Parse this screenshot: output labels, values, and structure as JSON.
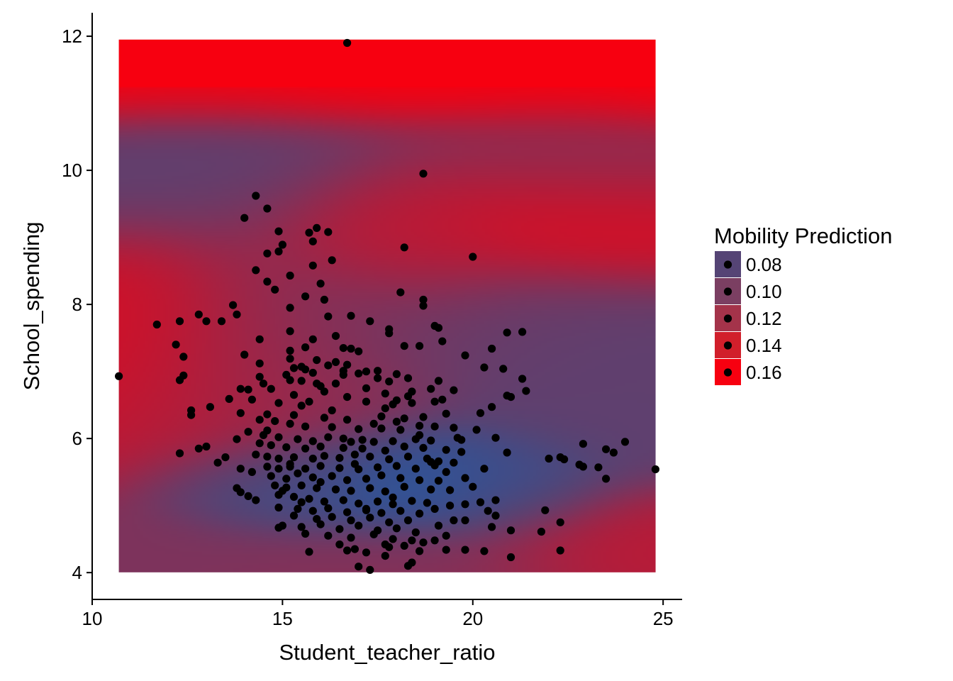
{
  "chart_data": {
    "type": "scatter",
    "title": "",
    "xlabel": "Student_teacher_ratio",
    "ylabel": "School_spending",
    "xlim": [
      10,
      25.5
    ],
    "ylim": [
      3.6,
      12.35
    ],
    "x_ticks": [
      10,
      15,
      20,
      25
    ],
    "y_ticks": [
      4,
      6,
      8,
      10,
      12
    ],
    "grid": false,
    "legend_position": "right",
    "legend": {
      "title": "Mobility Prediction",
      "entries": [
        {
          "label": "0.08",
          "color": "#554475"
        },
        {
          "label": "0.10",
          "color": "#7b3f62"
        },
        {
          "label": "0.12",
          "color": "#a4334a"
        },
        {
          "label": "0.14",
          "color": "#d11f2b"
        },
        {
          "label": "0.16",
          "color": "#f70010"
        }
      ]
    },
    "prediction_surface": {
      "x_range": [
        10.7,
        24.8
      ],
      "y_range": [
        4.0,
        11.95
      ],
      "color_low": "#1d5aa7",
      "color_mid": "#554475",
      "color_high": "#f70010",
      "regions": [
        {
          "x": 10.7,
          "y": 11.5,
          "value": 0.17,
          "sx": 60,
          "sy": 0.45
        },
        {
          "x": 17.0,
          "y": 11.6,
          "value": 0.17,
          "sx": 60,
          "sy": 0.4
        },
        {
          "x": 24.8,
          "y": 11.5,
          "value": 0.17,
          "sx": 60,
          "sy": 0.4
        },
        {
          "x": 12.5,
          "y": 10.2,
          "value": 0.085,
          "sx": 4.0,
          "sy": 0.8
        },
        {
          "x": 22.5,
          "y": 10.3,
          "value": 0.11,
          "sx": 3.0,
          "sy": 0.7
        },
        {
          "x": 21.5,
          "y": 9.2,
          "value": 0.155,
          "sx": 3.5,
          "sy": 0.55
        },
        {
          "x": 18.5,
          "y": 9.0,
          "value": 0.13,
          "sx": 1.5,
          "sy": 0.6
        },
        {
          "x": 10.7,
          "y": 7.6,
          "value": 0.15,
          "sx": 1.5,
          "sy": 0.8
        },
        {
          "x": 12.5,
          "y": 7.0,
          "value": 0.13,
          "sx": 1.8,
          "sy": 1.0
        },
        {
          "x": 15.5,
          "y": 7.2,
          "value": 0.11,
          "sx": 2.0,
          "sy": 1.0
        },
        {
          "x": 19.5,
          "y": 7.8,
          "value": 0.09,
          "sx": 2.5,
          "sy": 0.6
        },
        {
          "x": 23.5,
          "y": 6.8,
          "value": 0.085,
          "sx": 2.5,
          "sy": 0.9
        },
        {
          "x": 18.5,
          "y": 5.3,
          "value": 0.055,
          "sx": 2.3,
          "sy": 0.5
        },
        {
          "x": 14.5,
          "y": 5.2,
          "value": 0.07,
          "sx": 1.6,
          "sy": 0.4
        },
        {
          "x": 21.0,
          "y": 5.2,
          "value": 0.07,
          "sx": 1.5,
          "sy": 0.4
        },
        {
          "x": 23.5,
          "y": 4.5,
          "value": 0.135,
          "sx": 2.0,
          "sy": 0.45
        },
        {
          "x": 12.0,
          "y": 4.2,
          "value": 0.1,
          "sx": 2.0,
          "sy": 0.4
        },
        {
          "x": 17.5,
          "y": 4.1,
          "value": 0.105,
          "sx": 3.0,
          "sy": 0.4
        }
      ]
    },
    "points": [
      [
        16.7,
        11.9
      ],
      [
        18.7,
        9.95
      ],
      [
        14.3,
        9.62
      ],
      [
        14.6,
        9.43
      ],
      [
        14.0,
        9.29
      ],
      [
        15.9,
        9.14
      ],
      [
        16.2,
        9.08
      ],
      [
        15.7,
        9.07
      ],
      [
        14.9,
        9.09
      ],
      [
        15.0,
        8.89
      ],
      [
        14.9,
        8.79
      ],
      [
        14.6,
        8.76
      ],
      [
        15.8,
        8.94
      ],
      [
        18.2,
        8.85
      ],
      [
        20.0,
        8.71
      ],
      [
        16.3,
        8.66
      ],
      [
        15.8,
        8.58
      ],
      [
        14.3,
        8.51
      ],
      [
        15.2,
        8.43
      ],
      [
        14.6,
        8.34
      ],
      [
        16.0,
        8.31
      ],
      [
        14.8,
        8.22
      ],
      [
        18.1,
        8.18
      ],
      [
        15.6,
        8.12
      ],
      [
        16.1,
        8.07
      ],
      [
        13.7,
        7.99
      ],
      [
        18.7,
        8.07
      ],
      [
        15.2,
        7.95
      ],
      [
        18.7,
        7.98
      ],
      [
        13.8,
        7.85
      ],
      [
        12.8,
        7.85
      ],
      [
        16.2,
        7.82
      ],
      [
        16.8,
        7.83
      ],
      [
        12.3,
        7.75
      ],
      [
        13.0,
        7.75
      ],
      [
        13.4,
        7.75
      ],
      [
        11.7,
        7.7
      ],
      [
        17.3,
        7.75
      ],
      [
        19.0,
        7.68
      ],
      [
        19.1,
        7.65
      ],
      [
        15.2,
        7.6
      ],
      [
        17.8,
        7.63
      ],
      [
        17.8,
        7.57
      ],
      [
        20.9,
        7.58
      ],
      [
        21.3,
        7.59
      ],
      [
        16.4,
        7.53
      ],
      [
        15.8,
        7.48
      ],
      [
        19.2,
        7.45
      ],
      [
        14.4,
        7.48
      ],
      [
        18.2,
        7.38
      ],
      [
        18.6,
        7.38
      ],
      [
        15.6,
        7.36
      ],
      [
        16.8,
        7.34
      ],
      [
        12.2,
        7.4
      ],
      [
        17.0,
        7.3
      ],
      [
        20.5,
        7.34
      ],
      [
        15.2,
        7.31
      ],
      [
        16.6,
        7.35
      ],
      [
        14.0,
        7.25
      ],
      [
        15.2,
        7.19
      ],
      [
        12.4,
        7.22
      ],
      [
        16.4,
        7.14
      ],
      [
        15.9,
        7.17
      ],
      [
        19.8,
        7.24
      ],
      [
        15.5,
        7.07
      ],
      [
        14.4,
        7.12
      ],
      [
        15.3,
        7.05
      ],
      [
        15.6,
        7.03
      ],
      [
        16.7,
        7.1
      ],
      [
        16.6,
        7.01
      ],
      [
        16.2,
        7.09
      ],
      [
        17.5,
        7.01
      ],
      [
        17.2,
        7.0
      ],
      [
        15.8,
        6.98
      ],
      [
        16.6,
        6.95
      ],
      [
        17.0,
        6.97
      ],
      [
        20.3,
        7.06
      ],
      [
        20.8,
        7.04
      ],
      [
        12.4,
        6.94
      ],
      [
        14.4,
        6.92
      ],
      [
        15.2,
        6.87
      ],
      [
        15.1,
        6.95
      ],
      [
        17.5,
        6.9
      ],
      [
        18.0,
        6.96
      ],
      [
        10.7,
        6.93
      ],
      [
        12.3,
        6.87
      ],
      [
        21.3,
        6.89
      ],
      [
        18.3,
        6.9
      ],
      [
        19.1,
        6.86
      ],
      [
        16.0,
        6.78
      ],
      [
        15.5,
        6.86
      ],
      [
        15.9,
        6.82
      ],
      [
        17.2,
        6.75
      ],
      [
        19.5,
        6.72
      ],
      [
        21.4,
        6.71
      ],
      [
        13.9,
        6.74
      ],
      [
        14.1,
        6.73
      ],
      [
        14.7,
        6.74
      ],
      [
        16.1,
        6.7
      ],
      [
        18.4,
        6.7
      ],
      [
        18.9,
        6.74
      ],
      [
        15.3,
        6.65
      ],
      [
        16.7,
        6.62
      ],
      [
        17.7,
        6.67
      ],
      [
        18.0,
        6.57
      ],
      [
        18.3,
        6.63
      ],
      [
        19.2,
        6.58
      ],
      [
        20.9,
        6.64
      ],
      [
        21.0,
        6.62
      ],
      [
        13.6,
        6.59
      ],
      [
        14.2,
        6.58
      ],
      [
        14.9,
        6.53
      ],
      [
        15.5,
        6.49
      ],
      [
        17.2,
        6.55
      ],
      [
        17.9,
        6.51
      ],
      [
        18.4,
        6.53
      ],
      [
        19.0,
        6.55
      ],
      [
        20.5,
        6.47
      ],
      [
        13.1,
        6.47
      ],
      [
        12.6,
        6.42
      ],
      [
        12.6,
        6.35
      ],
      [
        13.9,
        6.38
      ],
      [
        14.6,
        6.36
      ],
      [
        15.3,
        6.35
      ],
      [
        16.1,
        6.31
      ],
      [
        16.7,
        6.28
      ],
      [
        17.6,
        6.33
      ],
      [
        18.2,
        6.3
      ],
      [
        18.7,
        6.32
      ],
      [
        19.3,
        6.37
      ],
      [
        14.4,
        6.28
      ],
      [
        14.8,
        6.26
      ],
      [
        15.2,
        6.22
      ],
      [
        15.6,
        6.18
      ],
      [
        16.3,
        6.17
      ],
      [
        17.0,
        6.14
      ],
      [
        17.6,
        6.15
      ],
      [
        18.1,
        6.13
      ],
      [
        18.6,
        6.19
      ],
      [
        19.0,
        6.18
      ],
      [
        19.5,
        6.16
      ],
      [
        20.1,
        6.13
      ],
      [
        14.1,
        6.1
      ],
      [
        14.5,
        6.05
      ],
      [
        14.9,
        6.02
      ],
      [
        15.4,
        5.99
      ],
      [
        15.8,
        5.96
      ],
      [
        16.2,
        6.02
      ],
      [
        16.6,
        6.0
      ],
      [
        17.1,
        5.98
      ],
      [
        17.4,
        5.95
      ],
      [
        17.9,
        5.96
      ],
      [
        18.5,
        5.99
      ],
      [
        18.9,
        5.97
      ],
      [
        19.6,
        6.01
      ],
      [
        20.6,
        6.01
      ],
      [
        13.8,
        5.99
      ],
      [
        14.4,
        5.93
      ],
      [
        14.7,
        5.9
      ],
      [
        15.1,
        5.87
      ],
      [
        15.6,
        5.85
      ],
      [
        16.0,
        5.88
      ],
      [
        16.6,
        5.86
      ],
      [
        17.1,
        5.85
      ],
      [
        17.7,
        5.82
      ],
      [
        18.2,
        5.88
      ],
      [
        18.7,
        5.86
      ],
      [
        19.3,
        5.83
      ],
      [
        19.7,
        5.8
      ],
      [
        20.9,
        5.79
      ],
      [
        13.0,
        5.88
      ],
      [
        12.8,
        5.85
      ],
      [
        12.3,
        5.78
      ],
      [
        13.3,
        5.64
      ],
      [
        13.5,
        5.72
      ],
      [
        14.3,
        5.76
      ],
      [
        14.6,
        5.73
      ],
      [
        14.9,
        5.7
      ],
      [
        15.3,
        5.72
      ],
      [
        15.8,
        5.7
      ],
      [
        16.1,
        5.74
      ],
      [
        16.5,
        5.71
      ],
      [
        16.9,
        5.76
      ],
      [
        17.3,
        5.73
      ],
      [
        17.8,
        5.69
      ],
      [
        18.3,
        5.73
      ],
      [
        18.8,
        5.7
      ],
      [
        19.1,
        5.66
      ],
      [
        19.5,
        5.64
      ],
      [
        22.0,
        5.7
      ],
      [
        22.3,
        5.72
      ],
      [
        22.4,
        5.69
      ],
      [
        22.8,
        5.61
      ],
      [
        22.9,
        5.58
      ],
      [
        23.3,
        5.57
      ],
      [
        23.5,
        5.84
      ],
      [
        23.7,
        5.79
      ],
      [
        23.5,
        5.4
      ],
      [
        24.0,
        5.95
      ],
      [
        22.9,
        5.92
      ],
      [
        24.8,
        5.54
      ],
      [
        13.9,
        5.55
      ],
      [
        14.6,
        5.58
      ],
      [
        14.9,
        5.55
      ],
      [
        15.2,
        5.58
      ],
      [
        15.6,
        5.55
      ],
      [
        16.0,
        5.59
      ],
      [
        16.5,
        5.56
      ],
      [
        17.0,
        5.54
      ],
      [
        17.5,
        5.57
      ],
      [
        18.0,
        5.59
      ],
      [
        18.5,
        5.55
      ],
      [
        19.0,
        5.6
      ],
      [
        19.3,
        5.5
      ],
      [
        20.3,
        5.55
      ],
      [
        14.2,
        5.5
      ],
      [
        14.7,
        5.44
      ],
      [
        15.1,
        5.4
      ],
      [
        15.4,
        5.48
      ],
      [
        15.8,
        5.42
      ],
      [
        16.3,
        5.44
      ],
      [
        16.7,
        5.38
      ],
      [
        17.2,
        5.4
      ],
      [
        17.6,
        5.45
      ],
      [
        18.1,
        5.41
      ],
      [
        18.6,
        5.38
      ],
      [
        19.1,
        5.37
      ],
      [
        19.8,
        5.41
      ],
      [
        14.8,
        5.3
      ],
      [
        15.1,
        5.27
      ],
      [
        15.5,
        5.3
      ],
      [
        15.9,
        5.26
      ],
      [
        16.4,
        5.24
      ],
      [
        16.8,
        5.22
      ],
      [
        17.3,
        5.26
      ],
      [
        17.7,
        5.21
      ],
      [
        18.2,
        5.28
      ],
      [
        18.9,
        5.24
      ],
      [
        19.4,
        5.23
      ],
      [
        13.9,
        5.2
      ],
      [
        14.1,
        5.14
      ],
      [
        14.3,
        5.08
      ],
      [
        13.8,
        5.26
      ],
      [
        14.9,
        5.16
      ],
      [
        15.3,
        5.13
      ],
      [
        15.7,
        5.1
      ],
      [
        16.1,
        5.06
      ],
      [
        16.6,
        5.08
      ],
      [
        17.0,
        5.03
      ],
      [
        17.5,
        5.06
      ],
      [
        17.9,
        5.02
      ],
      [
        18.4,
        5.07
      ],
      [
        18.8,
        5.04
      ],
      [
        19.4,
        5.0
      ],
      [
        19.8,
        5.02
      ],
      [
        20.2,
        5.05
      ],
      [
        20.6,
        5.08
      ],
      [
        14.9,
        4.97
      ],
      [
        15.4,
        4.95
      ],
      [
        15.8,
        4.92
      ],
      [
        16.2,
        4.96
      ],
      [
        16.7,
        4.9
      ],
      [
        17.2,
        4.93
      ],
      [
        17.6,
        4.89
      ],
      [
        18.1,
        4.92
      ],
      [
        18.6,
        4.88
      ],
      [
        19.0,
        4.95
      ],
      [
        20.4,
        4.92
      ],
      [
        20.6,
        4.85
      ],
      [
        21.9,
        4.93
      ],
      [
        15.3,
        4.85
      ],
      [
        15.9,
        4.8
      ],
      [
        16.3,
        4.83
      ],
      [
        16.8,
        4.78
      ],
      [
        17.3,
        4.82
      ],
      [
        17.8,
        4.75
      ],
      [
        18.3,
        4.78
      ],
      [
        19.5,
        4.78
      ],
      [
        15.0,
        4.7
      ],
      [
        15.5,
        4.68
      ],
      [
        16.0,
        4.72
      ],
      [
        16.5,
        4.65
      ],
      [
        17.0,
        4.7
      ],
      [
        17.5,
        4.63
      ],
      [
        18.0,
        4.66
      ],
      [
        18.5,
        4.6
      ],
      [
        19.1,
        4.7
      ],
      [
        20.5,
        4.68
      ],
      [
        21.0,
        4.63
      ],
      [
        14.9,
        4.67
      ],
      [
        15.6,
        4.58
      ],
      [
        16.2,
        4.55
      ],
      [
        16.8,
        4.52
      ],
      [
        17.4,
        4.57
      ],
      [
        17.9,
        4.5
      ],
      [
        18.4,
        4.48
      ],
      [
        19.3,
        4.55
      ],
      [
        21.8,
        4.61
      ],
      [
        22.3,
        4.75
      ],
      [
        17.7,
        4.42
      ],
      [
        18.2,
        4.4
      ],
      [
        18.7,
        4.45
      ],
      [
        16.9,
        4.35
      ],
      [
        17.2,
        4.3
      ],
      [
        17.8,
        4.38
      ],
      [
        18.6,
        4.32
      ],
      [
        19.3,
        4.34
      ],
      [
        19.8,
        4.34
      ],
      [
        20.3,
        4.32
      ],
      [
        21.0,
        4.23
      ],
      [
        22.3,
        4.33
      ],
      [
        15.7,
        4.31
      ],
      [
        16.7,
        4.33
      ],
      [
        17.7,
        4.25
      ],
      [
        18.4,
        4.15
      ],
      [
        18.3,
        4.1
      ],
      [
        17.0,
        4.09
      ],
      [
        17.3,
        4.04
      ],
      [
        19.8,
        4.78
      ],
      [
        15.2,
        5.62
      ],
      [
        16.3,
        6.42
      ],
      [
        18.6,
        6.05
      ],
      [
        17.2,
        4.95
      ],
      [
        16.0,
        5.35
      ],
      [
        18.0,
        6.25
      ],
      [
        15.7,
        6.55
      ],
      [
        17.8,
        6.85
      ],
      [
        14.5,
        6.82
      ],
      [
        20.2,
        6.38
      ],
      [
        19.7,
        5.98
      ],
      [
        16.9,
        5.62
      ],
      [
        17.9,
        5.12
      ],
      [
        15.5,
        5.05
      ],
      [
        16.5,
        4.42
      ],
      [
        18.9,
        5.65
      ],
      [
        14.6,
        6.12
      ],
      [
        16.4,
        6.82
      ],
      [
        17.4,
        6.22
      ],
      [
        15.0,
        5.22
      ],
      [
        19.0,
        4.48
      ],
      [
        16.8,
        5.95
      ],
      [
        17.7,
        6.45
      ],
      [
        20.0,
        5.28
      ]
    ]
  }
}
